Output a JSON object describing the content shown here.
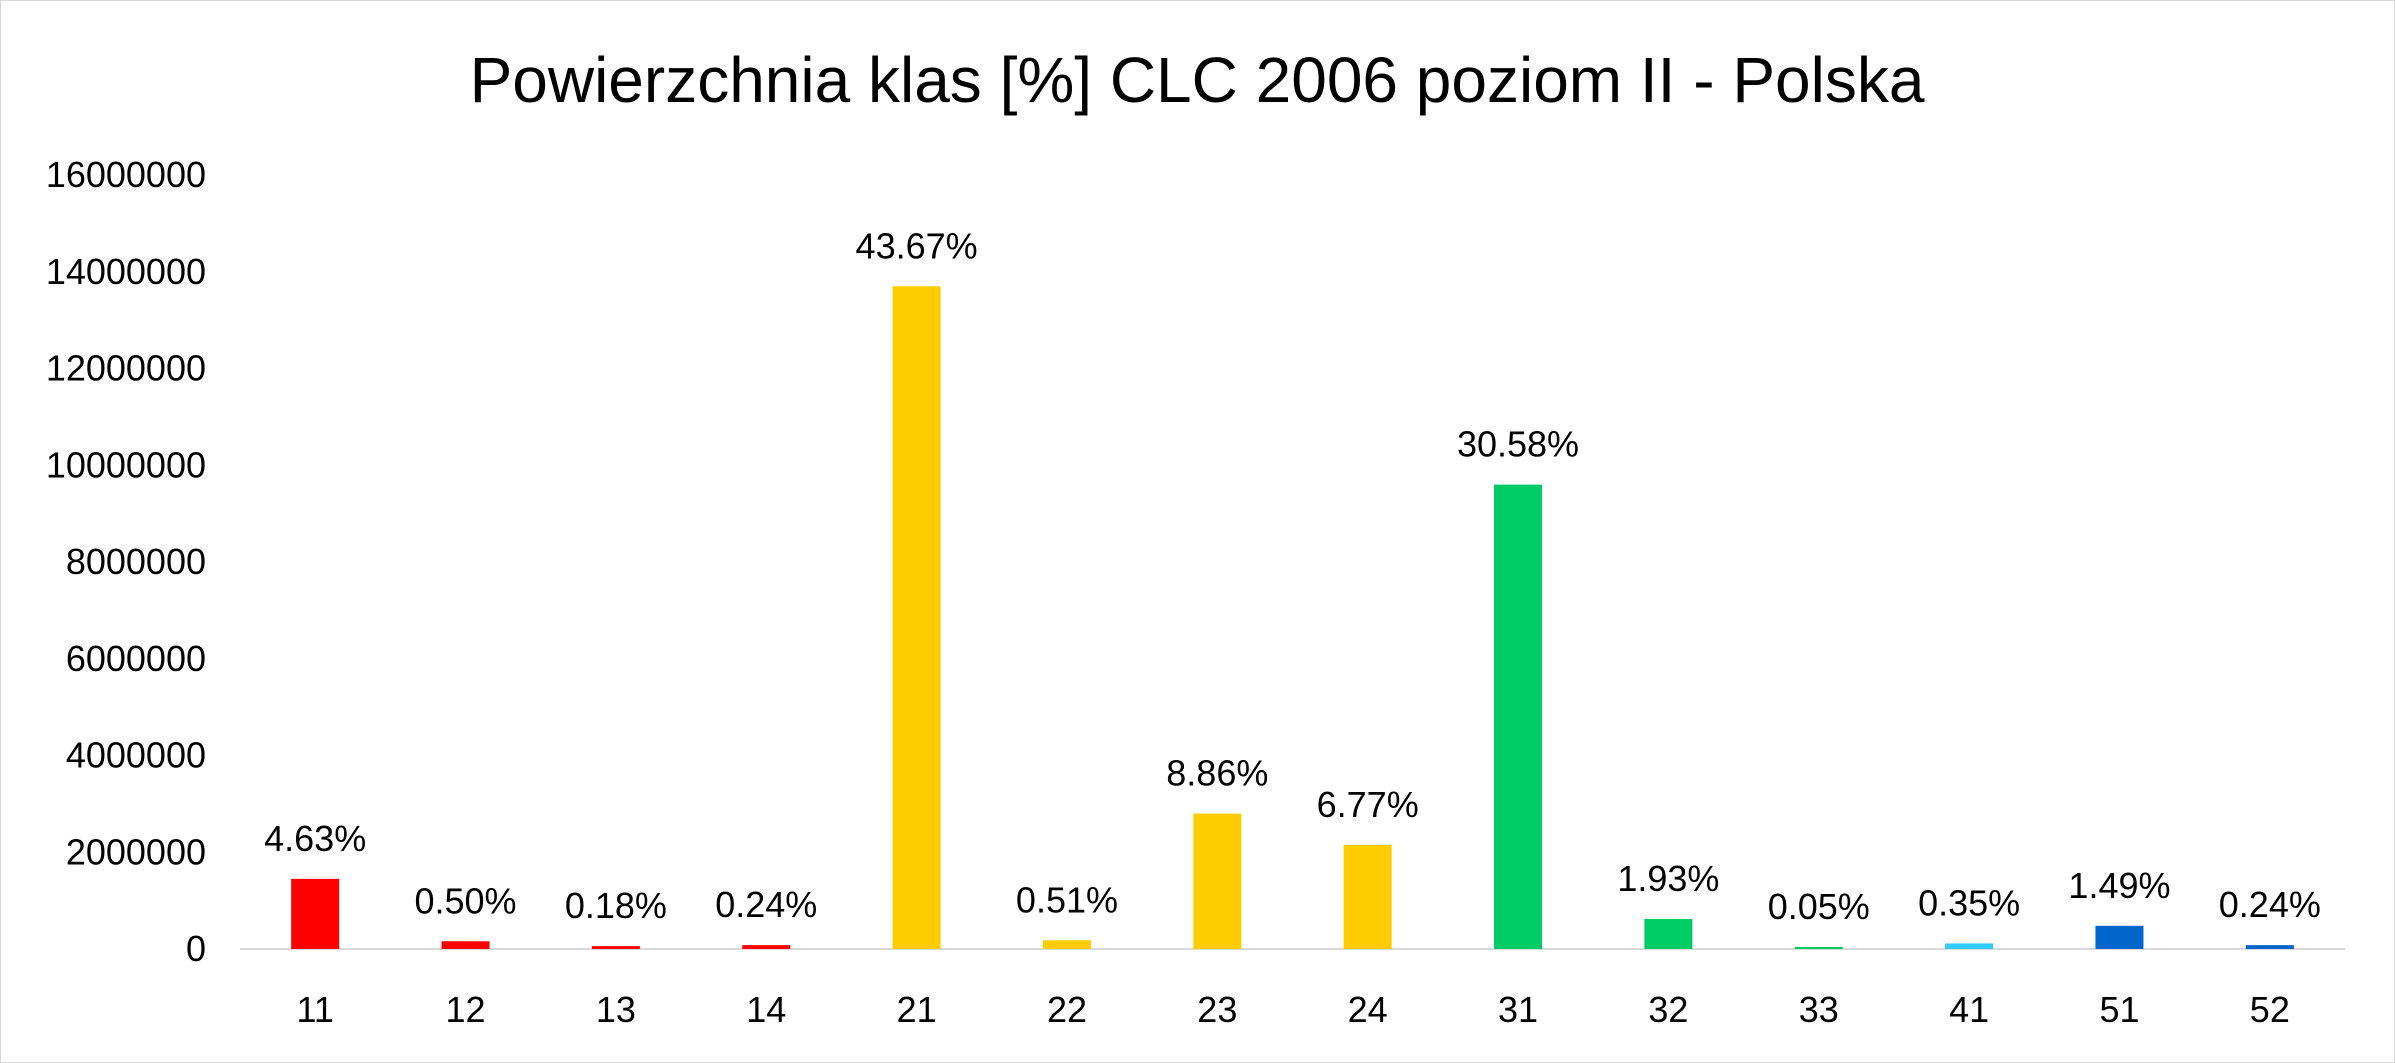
{
  "chart_data": {
    "type": "bar",
    "title": "Powierzchnia klas [%] CLC 2006 poziom II - Polska",
    "xlabel": "",
    "ylabel": "",
    "ylim": [
      0,
      16000000
    ],
    "yticks": [
      0,
      2000000,
      4000000,
      6000000,
      8000000,
      10000000,
      12000000,
      14000000,
      16000000
    ],
    "ytick_labels": [
      "0",
      "2000000",
      "4000000",
      "6000000",
      "8000000",
      "10000000",
      "12000000",
      "14000000",
      "16000000"
    ],
    "grid": false,
    "legend": "none",
    "categories": [
      "11",
      "12",
      "13",
      "14",
      "21",
      "22",
      "23",
      "24",
      "31",
      "32",
      "33",
      "41",
      "51",
      "52"
    ],
    "values": [
      1450000,
      160000,
      60000,
      80000,
      13700000,
      180000,
      2800000,
      2150000,
      9600000,
      620000,
      15000,
      115000,
      480000,
      80000
    ],
    "data_labels": [
      "4.63%",
      "0.50%",
      "0.18%",
      "0.24%",
      "43.67%",
      "0.51%",
      "8.86%",
      "6.77%",
      "30.58%",
      "1.93%",
      "0.05%",
      "0.35%",
      "1.49%",
      "0.24%"
    ],
    "colors": [
      "#ff0000",
      "#ff0000",
      "#ff0000",
      "#ff0000",
      "#ffcc00",
      "#ffcc00",
      "#ffcc00",
      "#ffcc00",
      "#00cc66",
      "#00cc66",
      "#00cc66",
      "#33ccff",
      "#0066cc",
      "#0066cc"
    ],
    "axis_color": "#d9d9d9"
  }
}
